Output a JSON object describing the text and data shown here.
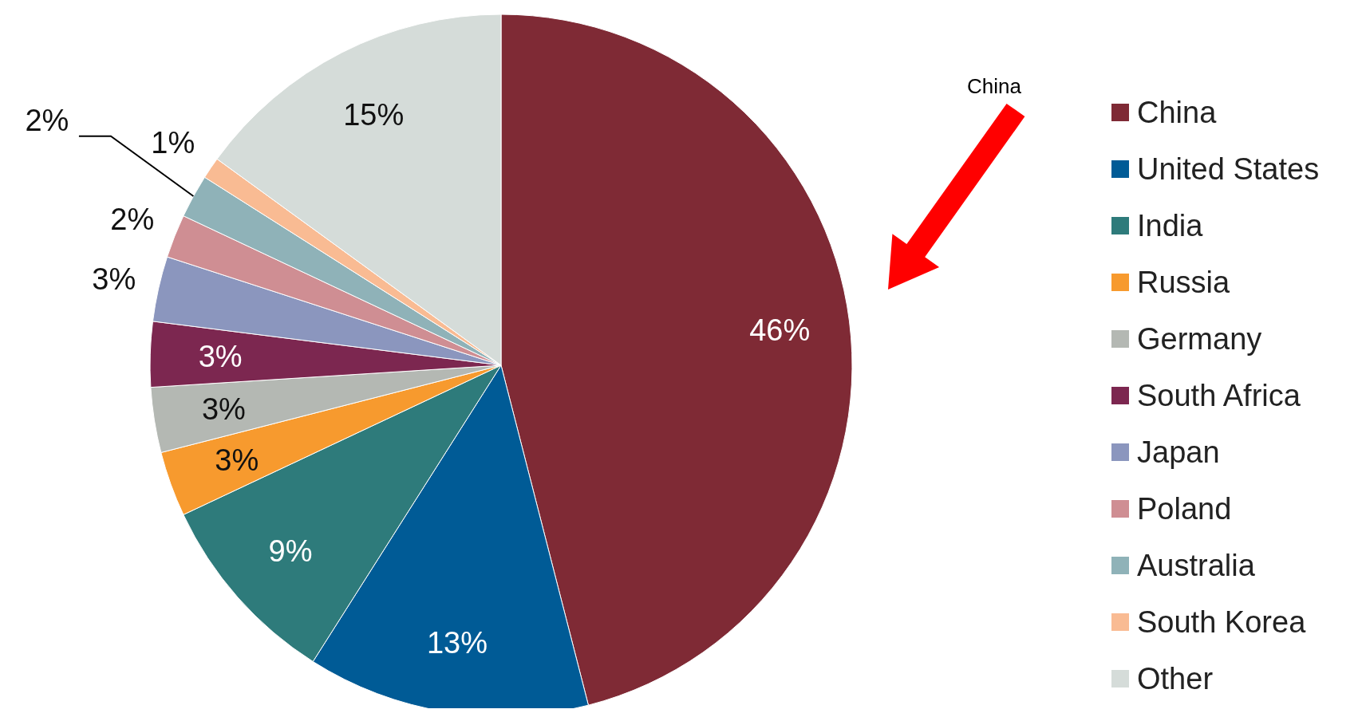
{
  "chart_data": {
    "type": "pie",
    "categories": [
      "China",
      "United States",
      "India",
      "Russia",
      "Germany",
      "South Africa",
      "Japan",
      "Poland",
      "Australia",
      "South Korea",
      "Other"
    ],
    "values": [
      46,
      13,
      9,
      3,
      3,
      3,
      3,
      2,
      2,
      1,
      15
    ],
    "colors": [
      "#7f2a35",
      "#005b96",
      "#2e7b7b",
      "#f79a2e",
      "#b4b8b3",
      "#7c2750",
      "#8b96be",
      "#cf8e93",
      "#8fb2b8",
      "#f9bb93",
      "#d5dcd9"
    ],
    "value_labels": [
      "46%",
      "13%",
      "9%",
      "3%",
      "3%",
      "3%",
      "3%",
      "2%",
      "2%",
      "1%",
      "15%"
    ],
    "legend": "right",
    "annotations": [
      "China"
    ]
  }
}
